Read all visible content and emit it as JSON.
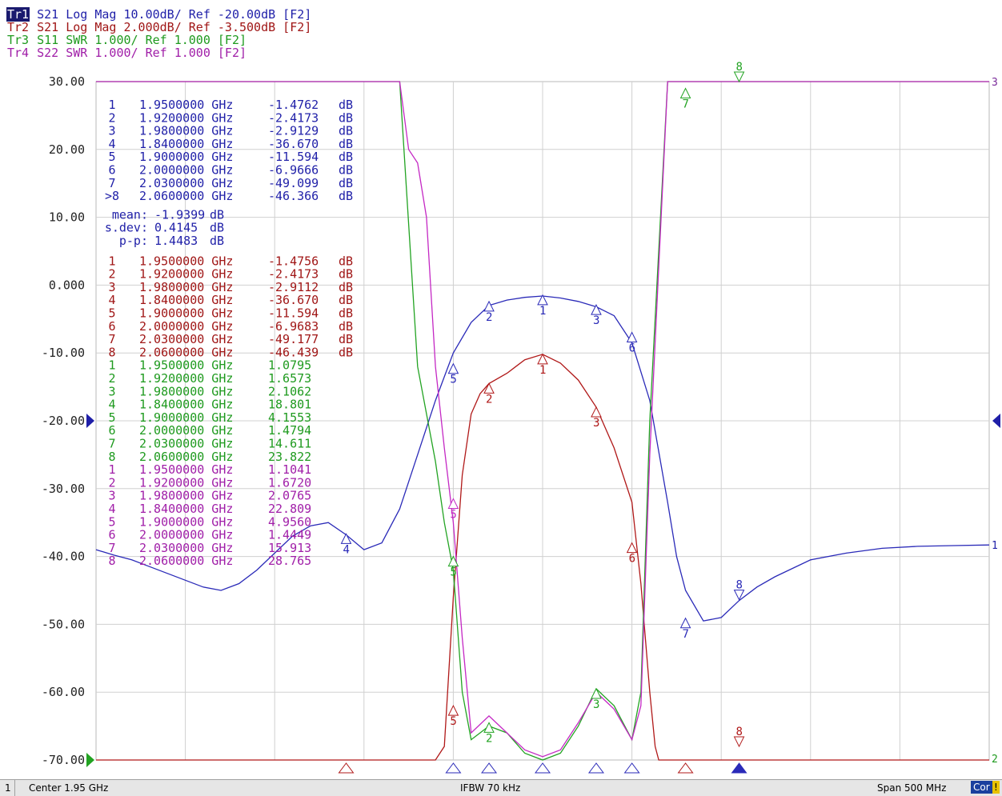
{
  "traces": [
    {
      "tag": "Tr1",
      "text": " S21 Log Mag 10.00dB/ Ref -20.00dB [F2]",
      "color": "#1f1fa8",
      "active": true
    },
    {
      "tag": "Tr2",
      "text": " S21 Log Mag 2.000dB/ Ref -3.500dB [F2]",
      "color": "#a01616",
      "active": false
    },
    {
      "tag": "Tr3",
      "text": " S11 SWR 1.000/ Ref 1.000 [F2]",
      "color": "#1e9a1e",
      "active": false
    },
    {
      "tag": "Tr4",
      "text": " S22 SWR 1.000/ Ref 1.000 [F2]",
      "color": "#a01ea8",
      "active": false
    }
  ],
  "status": {
    "channel": "1",
    "center": "Center 1.95 GHz",
    "ifbw": "IFBW 70 kHz",
    "span": "Span 500 MHz",
    "cor": "Cor",
    "excl": "!"
  },
  "marker_tables": [
    {
      "color": "#1f1fa8",
      "rows": [
        [
          "1",
          "1.9500000 GHz",
          "-1.4762",
          "dB"
        ],
        [
          "2",
          "1.9200000 GHz",
          "-2.4173",
          "dB"
        ],
        [
          "3",
          "1.9800000 GHz",
          "-2.9129",
          "dB"
        ],
        [
          "4",
          "1.8400000 GHz",
          "-36.670",
          "dB"
        ],
        [
          "5",
          "1.9000000 GHz",
          "-11.594",
          "dB"
        ],
        [
          "6",
          "2.0000000 GHz",
          "-6.9666",
          "dB"
        ],
        [
          "7",
          "2.0300000 GHz",
          "-49.099",
          "dB"
        ],
        [
          ">8",
          "2.0600000 GHz",
          "-46.366",
          "dB"
        ]
      ],
      "stats": [
        [
          "mean:",
          "-1.9399",
          "dB"
        ],
        [
          "s.dev:",
          "0.4145",
          "dB"
        ],
        [
          "p-p:",
          "1.4483",
          "dB"
        ]
      ]
    },
    {
      "color": "#a01616",
      "rows": [
        [
          "1",
          "1.9500000 GHz",
          "-1.4756",
          "dB"
        ],
        [
          "2",
          "1.9200000 GHz",
          "-2.4173",
          "dB"
        ],
        [
          "3",
          "1.9800000 GHz",
          "-2.9112",
          "dB"
        ],
        [
          "4",
          "1.8400000 GHz",
          "-36.670",
          "dB"
        ],
        [
          "5",
          "1.9000000 GHz",
          "-11.594",
          "dB"
        ],
        [
          "6",
          "2.0000000 GHz",
          "-6.9683",
          "dB"
        ],
        [
          "7",
          "2.0300000 GHz",
          "-49.177",
          "dB"
        ],
        [
          "8",
          "2.0600000 GHz",
          "-46.439",
          "dB"
        ]
      ]
    },
    {
      "color": "#1e9a1e",
      "rows": [
        [
          "1",
          "1.9500000 GHz",
          "1.0795",
          ""
        ],
        [
          "2",
          "1.9200000 GHz",
          "1.6573",
          ""
        ],
        [
          "3",
          "1.9800000 GHz",
          "2.1062",
          ""
        ],
        [
          "4",
          "1.8400000 GHz",
          "18.801",
          ""
        ],
        [
          "5",
          "1.9000000 GHz",
          "4.1553",
          ""
        ],
        [
          "6",
          "2.0000000 GHz",
          "1.4794",
          ""
        ],
        [
          "7",
          "2.0300000 GHz",
          "14.611",
          ""
        ],
        [
          "8",
          "2.0600000 GHz",
          "23.822",
          ""
        ]
      ]
    },
    {
      "color": "#a01ea8",
      "rows": [
        [
          "1",
          "1.9500000 GHz",
          "1.1041",
          ""
        ],
        [
          "2",
          "1.9200000 GHz",
          "1.6720",
          ""
        ],
        [
          "3",
          "1.9800000 GHz",
          "2.0765",
          ""
        ],
        [
          "4",
          "1.8400000 GHz",
          "22.809",
          ""
        ],
        [
          "5",
          "1.9000000 GHz",
          "4.9560",
          ""
        ],
        [
          "6",
          "2.0000000 GHz",
          "1.4449",
          ""
        ],
        [
          "7",
          "2.0300000 GHz",
          "15.913",
          ""
        ],
        [
          "8",
          "2.0600000 GHz",
          "28.765",
          ""
        ]
      ]
    }
  ],
  "chart_data": {
    "type": "line",
    "x_range_ghz": [
      1.7,
      2.2
    ],
    "y_range": [
      -70,
      30
    ],
    "y_ticks": [
      "30.00",
      "20.00",
      "10.00",
      "0.000",
      "-10.00",
      "-20.00",
      "-30.00",
      "-40.00",
      "-50.00",
      "-60.00",
      "-70.00"
    ],
    "grid": true,
    "end_labels": {
      "tr1": "1",
      "top_right": "3",
      "bottom_right": "2"
    },
    "series": [
      {
        "id": "tr1",
        "color": "#2a2ab8",
        "x": [
          1.7,
          1.71,
          1.72,
          1.73,
          1.74,
          1.75,
          1.76,
          1.77,
          1.78,
          1.79,
          1.8,
          1.81,
          1.82,
          1.83,
          1.84,
          1.85,
          1.86,
          1.87,
          1.875,
          1.88,
          1.89,
          1.895,
          1.9,
          1.91,
          1.92,
          1.93,
          1.94,
          1.95,
          1.96,
          1.97,
          1.98,
          1.99,
          2.0,
          2.01,
          2.02,
          2.025,
          2.03,
          2.04,
          2.05,
          2.06,
          2.07,
          2.08,
          2.1,
          2.12,
          2.14,
          2.16,
          2.18,
          2.2
        ],
        "y": [
          -39,
          -39.8,
          -40.5,
          -41.5,
          -42.5,
          -43.5,
          -44.5,
          -45,
          -44,
          -42,
          -39.5,
          -37,
          -35.5,
          -35,
          -36.8,
          -39,
          -38,
          -33,
          -29,
          -25,
          -17,
          -13.5,
          -10,
          -5.5,
          -3,
          -2.2,
          -1.8,
          -1.6,
          -1.9,
          -2.4,
          -3.2,
          -4.5,
          -8.5,
          -17,
          -32,
          -40,
          -45,
          -49.5,
          -49,
          -46.5,
          -44.5,
          -43,
          -40.5,
          -39.5,
          -38.8,
          -38.5,
          -38.4,
          -38.3
        ]
      },
      {
        "id": "tr2",
        "color": "#b01818",
        "x": [
          1.7,
          1.8,
          1.89,
          1.895,
          1.9,
          1.905,
          1.91,
          1.915,
          1.92,
          1.93,
          1.935,
          1.94,
          1.95,
          1.96,
          1.97,
          1.98,
          1.99,
          2.0,
          2.005,
          2.01,
          2.013,
          2.015,
          2.2
        ],
        "y": [
          -70,
          -70,
          -70,
          -68,
          -46,
          -28,
          -19,
          -16,
          -14.5,
          -13,
          -12,
          -11,
          -10.2,
          -11.5,
          -14,
          -18,
          -24,
          -32,
          -44,
          -60,
          -68,
          -70,
          -70
        ]
      },
      {
        "id": "tr3",
        "color": "#22a322",
        "x": [
          1.7,
          1.84,
          1.86,
          1.87,
          1.88,
          1.89,
          1.895,
          1.9,
          1.905,
          1.91,
          1.92,
          1.93,
          1.94,
          1.95,
          1.96,
          1.97,
          1.98,
          1.99,
          2.0,
          2.005,
          2.01,
          2.02,
          2.03,
          2.035,
          2.2
        ],
        "y": [
          30,
          30,
          30,
          30,
          -12,
          -26,
          -35,
          -42,
          -60,
          -67,
          -65,
          -66,
          -69,
          -70,
          -69,
          -65,
          -59.5,
          -62,
          -67,
          -60,
          -20,
          30,
          30,
          30,
          30
        ]
      },
      {
        "id": "tr4",
        "color": "#c428c4",
        "x": [
          1.7,
          1.84,
          1.87,
          1.875,
          1.88,
          1.885,
          1.89,
          1.895,
          1.9,
          1.905,
          1.91,
          1.92,
          1.93,
          1.94,
          1.95,
          1.96,
          1.97,
          1.98,
          1.99,
          2.0,
          2.005,
          2.01,
          2.02,
          2.03,
          2.2
        ],
        "y": [
          30,
          30,
          30,
          20,
          18,
          10,
          -12,
          -24,
          -35,
          -52,
          -66,
          -63.5,
          -66,
          -68.5,
          -69.5,
          -68.5,
          -64.5,
          -60,
          -62.5,
          -67,
          -62,
          -25,
          30,
          30,
          30
        ]
      }
    ],
    "markers": [
      {
        "trace": "tr1",
        "label": "1",
        "x": 1.95,
        "y": -1.4762,
        "dir": "up"
      },
      {
        "trace": "tr1",
        "label": "2",
        "x": 1.92,
        "y": -2.4173,
        "dir": "up"
      },
      {
        "trace": "tr1",
        "label": "3",
        "x": 1.98,
        "y": -2.9129,
        "dir": "up"
      },
      {
        "trace": "tr1",
        "label": "4",
        "x": 1.84,
        "y": -36.67,
        "dir": "up"
      },
      {
        "trace": "tr1",
        "label": "5",
        "x": 1.9,
        "y": -11.594,
        "dir": "up"
      },
      {
        "trace": "tr1",
        "label": "6",
        "x": 2.0,
        "y": -6.9666,
        "dir": "up"
      },
      {
        "trace": "tr1",
        "label": "7",
        "x": 2.03,
        "y": -49.099,
        "dir": "up"
      },
      {
        "trace": "tr1",
        "label": "8",
        "x": 2.06,
        "y": -46.366,
        "dir": "down"
      },
      {
        "trace": "tr2",
        "label": "1",
        "x": 1.95,
        "y": -10.2,
        "dir": "up"
      },
      {
        "trace": "tr2",
        "label": "2",
        "x": 1.92,
        "y": -14.5,
        "dir": "up"
      },
      {
        "trace": "tr2",
        "label": "3",
        "x": 1.98,
        "y": -18,
        "dir": "up"
      },
      {
        "trace": "tr2",
        "label": "5",
        "x": 1.9,
        "y": -62,
        "dir": "up"
      },
      {
        "trace": "tr2",
        "label": "6",
        "x": 2.0,
        "y": -38,
        "dir": "up"
      },
      {
        "trace": "tr2",
        "label": "8",
        "x": 2.06,
        "y": -68,
        "dir": "down"
      },
      {
        "trace": "tr3",
        "label": "5",
        "x": 1.9,
        "y": -40,
        "dir": "up"
      },
      {
        "trace": "tr3",
        "label": "7",
        "x": 2.03,
        "y": 29,
        "dir": "up"
      },
      {
        "trace": "tr3",
        "label": "8",
        "x": 2.06,
        "y": 30,
        "dir": "down"
      },
      {
        "trace": "tr3",
        "label": "2",
        "x": 1.92,
        "y": -64.5,
        "dir": "up"
      },
      {
        "trace": "tr3",
        "label": "3",
        "x": 1.98,
        "y": -59.5,
        "dir": "up"
      },
      {
        "trace": "tr4",
        "label": "5",
        "x": 1.9,
        "y": -31.5,
        "dir": "up"
      }
    ],
    "axis_markers": [
      {
        "trace": "tr2",
        "x": 1.84,
        "dir": "up"
      },
      {
        "trace": "tr1",
        "x": 1.9,
        "dir": "up"
      },
      {
        "trace": "tr1",
        "x": 1.92,
        "dir": "up"
      },
      {
        "trace": "tr1",
        "x": 1.95,
        "dir": "up"
      },
      {
        "trace": "tr1",
        "x": 1.98,
        "dir": "up"
      },
      {
        "trace": "tr1",
        "x": 2.0,
        "dir": "up"
      },
      {
        "trace": "tr2",
        "x": 2.03,
        "dir": "up"
      },
      {
        "trace": "tr1",
        "x": 2.06,
        "dir": "up",
        "filled": true
      }
    ],
    "ref_arrows": [
      {
        "color": "#1f1fa8",
        "y": -20,
        "side": "both"
      },
      {
        "color": "#22a322",
        "y": -70,
        "side": "left"
      }
    ]
  }
}
